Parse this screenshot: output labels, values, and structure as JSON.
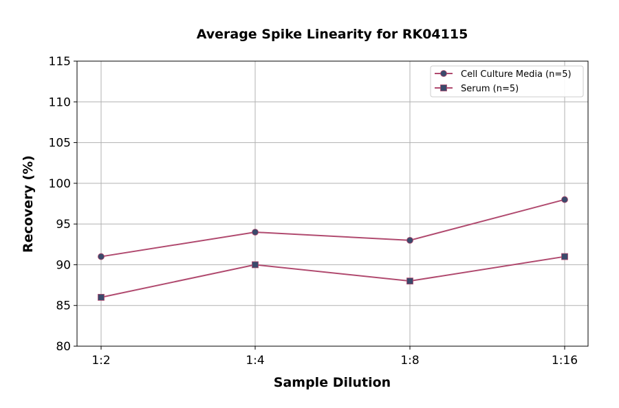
{
  "chart_data": {
    "type": "line",
    "title": "Average Spike Linearity for RK04115",
    "xlabel": "Sample Dilution",
    "ylabel": "Recovery (%)",
    "categories": [
      "1:2",
      "1:4",
      "1:8",
      "1:16"
    ],
    "ylim": [
      80,
      115
    ],
    "yticks": [
      80,
      85,
      90,
      95,
      100,
      105,
      110,
      115
    ],
    "grid": true,
    "legend_position": "top-right",
    "series": [
      {
        "name": "Cell Culture Media (n=5)",
        "values": [
          91,
          94,
          93,
          98
        ],
        "marker": "circle",
        "line_color": "#b0496e",
        "marker_color": "#3b4a6b"
      },
      {
        "name": "Serum (n=5)",
        "values": [
          86,
          90,
          88,
          91
        ],
        "marker": "square",
        "line_color": "#b0496e",
        "marker_color": "#3b4a6b"
      }
    ]
  }
}
